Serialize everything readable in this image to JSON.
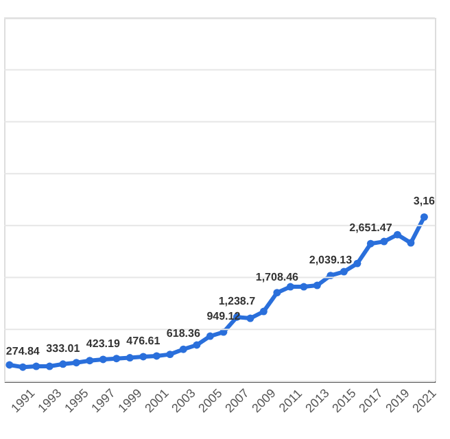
{
  "chart_data": {
    "type": "line",
    "x": [
      1990,
      1991,
      1992,
      1993,
      1994,
      1995,
      1996,
      1997,
      1998,
      1999,
      2000,
      2001,
      2002,
      2003,
      2004,
      2005,
      2006,
      2007,
      2008,
      2009,
      2010,
      2011,
      2012,
      2013,
      2014,
      2015,
      2016,
      2017,
      2018,
      2019,
      2020,
      2021
    ],
    "series": [
      {
        "color": "#2a6fdb",
        "values": [
          317,
          274.84,
          290,
          290,
          333.01,
          360,
          400,
          423.19,
          440,
          455,
          476.61,
          490,
          520,
          618.36,
          700,
          871,
          949.12,
          1238.7,
          1214,
          1346,
          1708.46,
          1822,
          1822,
          1848,
          2039.13,
          2112,
          2270,
          2651.47,
          2693,
          2825,
          2667,
          3165
        ],
        "value_labels": [
          null,
          "274.84",
          null,
          null,
          "333.01",
          null,
          null,
          "423.19",
          null,
          null,
          "476.61",
          null,
          null,
          "618.36",
          null,
          null,
          "949.12",
          "1,238.7",
          null,
          null,
          "1,708.46",
          null,
          null,
          null,
          "2,039.13",
          null,
          null,
          "2,651.47",
          null,
          null,
          null,
          null
        ]
      }
    ],
    "annotations": [
      {
        "text": "3,16",
        "x": 2021,
        "y": 3165
      }
    ],
    "xlim": [
      1989.6,
      2021.8
    ],
    "xticks": [
      1991,
      1993,
      1995,
      1997,
      1999,
      2001,
      2003,
      2005,
      2007,
      2009,
      2011,
      2013,
      2015,
      2017,
      2019,
      2021
    ],
    "ylim": [
      0,
      7000
    ],
    "yticks": [
      {
        "value": 0,
        "label": null
      },
      {
        "value": 1000,
        "label": null
      },
      {
        "value": 2000,
        "label": null
      },
      {
        "value": 3000,
        "label": null
      },
      {
        "value": 4000,
        "label": null
      },
      {
        "value": 5000,
        "label": null
      },
      {
        "value": 6000,
        "label": null
      },
      {
        "value": 7000,
        "label": null
      }
    ],
    "tick_labels": "x",
    "grid": "y",
    "marker": "circle",
    "line_style": "solid"
  }
}
